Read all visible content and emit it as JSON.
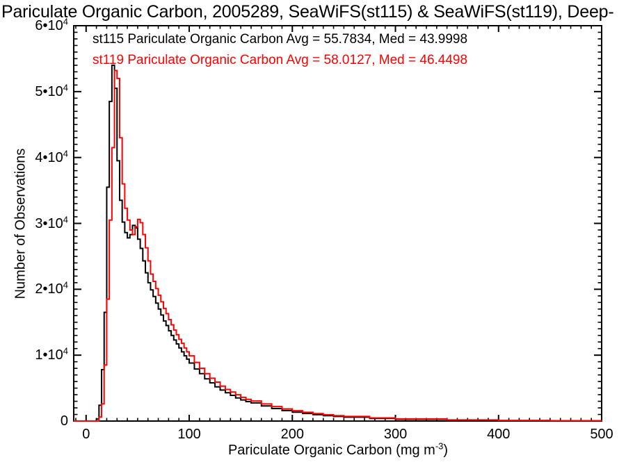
{
  "chart_data": {
    "type": "step-histogram",
    "title": "Pariculate Organic Carbon, 2005289, SeaWiFS(st115) & SeaWiFS(st119), Deep-",
    "xlabel": "Pariculate Organic Carbon (mg m⁻³)",
    "xlabel_parts": {
      "pre": "Pariculate Organic Carbon (mg m",
      "sup": "-3",
      "post": ")"
    },
    "ylabel": "Number of Observations",
    "xlim": [
      -12,
      500
    ],
    "ylim": [
      0,
      60000
    ],
    "grid": false,
    "legend_position": "top-left-inside",
    "xticks": {
      "values": [
        0,
        100,
        200,
        300,
        400,
        500
      ],
      "labels": [
        "0",
        "100",
        "200",
        "300",
        "400",
        "500"
      ],
      "minor_step": 10
    },
    "yticks": {
      "values": [
        0,
        10000,
        20000,
        30000,
        40000,
        50000,
        60000
      ],
      "labels": [
        "0",
        "1•10^4",
        "2•10^4",
        "3•10^4",
        "4•10^4",
        "5•10^4",
        "6•10^4"
      ],
      "minor_step": 1000
    },
    "legend": [
      {
        "series": "st115",
        "color": "#000000",
        "avg": 55.7834,
        "med": 43.9998,
        "label": "st115 Pariculate Organic Carbon Avg = 55.7834, Med = 43.9998"
      },
      {
        "series": "st119",
        "color": "#ff0000",
        "avg": 58.0127,
        "med": 46.4498,
        "label": "st119 Pariculate Organic Carbon Avg = 58.0127, Med = 46.4498"
      }
    ],
    "bin_edges": [
      10,
      12.5,
      15,
      17.5,
      20,
      22.5,
      25,
      27.5,
      30,
      32.5,
      35,
      37.5,
      40,
      42.5,
      45,
      47.5,
      50,
      52.5,
      55,
      57.5,
      60,
      62.5,
      65,
      67.5,
      70,
      72.5,
      75,
      77.5,
      80,
      82.5,
      85,
      87.5,
      90,
      92.5,
      95,
      97.5,
      100,
      105,
      110,
      115,
      120,
      125,
      130,
      135,
      140,
      145,
      150,
      155,
      160,
      170,
      180,
      190,
      200,
      210,
      220,
      230,
      240,
      250,
      275,
      300,
      350,
      400,
      450
    ],
    "bin_end": 500,
    "series": [
      {
        "name": "st115",
        "color": "#000000",
        "values": [
          300,
          2400,
          7800,
          16500,
          35500,
          48500,
          54000,
          50500,
          39500,
          33500,
          30200,
          28600,
          27800,
          28300,
          29700,
          29300,
          27600,
          26200,
          24300,
          22500,
          21000,
          19900,
          18900,
          17900,
          17000,
          16100,
          15200,
          14500,
          13700,
          13000,
          12300,
          11700,
          11100,
          10500,
          9900,
          9400,
          8800,
          7900,
          7200,
          6400,
          5800,
          5200,
          4700,
          4300,
          3900,
          3500,
          3200,
          2950,
          2750,
          2300,
          1900,
          1600,
          1350,
          1150,
          970,
          820,
          700,
          590,
          400,
          270,
          130,
          65,
          35
        ]
      },
      {
        "name": "st119",
        "color": "#ff0000",
        "values": [
          0,
          600,
          2600,
          8500,
          18500,
          30500,
          41500,
          53200,
          52000,
          43000,
          36000,
          32300,
          30500,
          29000,
          28300,
          29500,
          30600,
          30100,
          28300,
          26300,
          24300,
          22300,
          21200,
          20100,
          19100,
          18100,
          17100,
          16300,
          15400,
          14600,
          13800,
          13100,
          12400,
          11800,
          11100,
          10500,
          9900,
          8900,
          8000,
          7200,
          6500,
          5900,
          5300,
          4800,
          4400,
          4000,
          3600,
          3300,
          3050,
          2600,
          2200,
          1850,
          1570,
          1330,
          1130,
          960,
          820,
          700,
          480,
          330,
          170,
          90,
          50
        ]
      }
    ]
  }
}
